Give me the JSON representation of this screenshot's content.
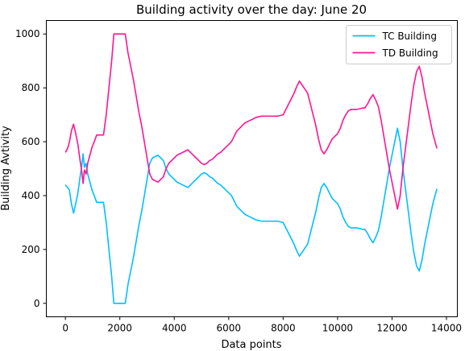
{
  "chart_data": {
    "type": "line",
    "title": "Building activity over the day: June 20",
    "xlabel": "Data points",
    "ylabel": "Building Avtivity",
    "xlim": [
      -700,
      14400
    ],
    "ylim": [
      -50,
      1050
    ],
    "xticks": [
      0,
      2000,
      4000,
      6000,
      8000,
      10000,
      12000,
      14000
    ],
    "yticks": [
      0,
      200,
      400,
      600,
      800,
      1000
    ],
    "grid": false,
    "legend_position": "top-right",
    "series": [
      {
        "name": "TC Building",
        "color": "#00bfff",
        "points": [
          [
            0,
            440
          ],
          [
            80,
            430
          ],
          [
            150,
            420
          ],
          [
            220,
            370
          ],
          [
            300,
            335
          ],
          [
            380,
            370
          ],
          [
            460,
            410
          ],
          [
            540,
            470
          ],
          [
            600,
            510
          ],
          [
            650,
            555
          ],
          [
            700,
            505
          ],
          [
            760,
            520
          ],
          [
            820,
            480
          ],
          [
            900,
            450
          ],
          [
            980,
            420
          ],
          [
            1060,
            400
          ],
          [
            1150,
            375
          ],
          [
            1300,
            375
          ],
          [
            1400,
            375
          ],
          [
            1500,
            300
          ],
          [
            1600,
            200
          ],
          [
            1700,
            100
          ],
          [
            1780,
            0
          ],
          [
            2200,
            0
          ],
          [
            2300,
            70
          ],
          [
            2400,
            120
          ],
          [
            2500,
            170
          ],
          [
            2600,
            230
          ],
          [
            2700,
            290
          ],
          [
            2800,
            340
          ],
          [
            2900,
            400
          ],
          [
            3000,
            460
          ],
          [
            3100,
            520
          ],
          [
            3200,
            540
          ],
          [
            3300,
            545
          ],
          [
            3400,
            550
          ],
          [
            3500,
            540
          ],
          [
            3600,
            530
          ],
          [
            3700,
            500
          ],
          [
            3800,
            480
          ],
          [
            3900,
            470
          ],
          [
            4000,
            460
          ],
          [
            4100,
            450
          ],
          [
            4200,
            445
          ],
          [
            4300,
            440
          ],
          [
            4400,
            435
          ],
          [
            4500,
            430
          ],
          [
            4600,
            440
          ],
          [
            4700,
            450
          ],
          [
            4800,
            460
          ],
          [
            4900,
            470
          ],
          [
            5000,
            480
          ],
          [
            5100,
            485
          ],
          [
            5200,
            480
          ],
          [
            5300,
            470
          ],
          [
            5400,
            465
          ],
          [
            5500,
            455
          ],
          [
            5600,
            445
          ],
          [
            5700,
            440
          ],
          [
            5800,
            430
          ],
          [
            5900,
            420
          ],
          [
            6000,
            410
          ],
          [
            6100,
            400
          ],
          [
            6200,
            380
          ],
          [
            6300,
            360
          ],
          [
            6400,
            350
          ],
          [
            6500,
            340
          ],
          [
            6600,
            330
          ],
          [
            6700,
            325
          ],
          [
            6800,
            320
          ],
          [
            6900,
            315
          ],
          [
            7000,
            310
          ],
          [
            7200,
            305
          ],
          [
            7400,
            305
          ],
          [
            7600,
            305
          ],
          [
            7800,
            305
          ],
          [
            8000,
            300
          ],
          [
            8100,
            280
          ],
          [
            8200,
            260
          ],
          [
            8300,
            240
          ],
          [
            8400,
            220
          ],
          [
            8500,
            195
          ],
          [
            8600,
            175
          ],
          [
            8700,
            190
          ],
          [
            8800,
            205
          ],
          [
            8900,
            220
          ],
          [
            9000,
            260
          ],
          [
            9100,
            300
          ],
          [
            9200,
            340
          ],
          [
            9300,
            390
          ],
          [
            9400,
            430
          ],
          [
            9500,
            445
          ],
          [
            9600,
            430
          ],
          [
            9700,
            410
          ],
          [
            9800,
            390
          ],
          [
            9900,
            380
          ],
          [
            10000,
            370
          ],
          [
            10100,
            350
          ],
          [
            10200,
            320
          ],
          [
            10300,
            300
          ],
          [
            10400,
            285
          ],
          [
            10500,
            280
          ],
          [
            10600,
            280
          ],
          [
            10700,
            280
          ],
          [
            10800,
            278
          ],
          [
            10900,
            275
          ],
          [
            11000,
            275
          ],
          [
            11100,
            260
          ],
          [
            11200,
            240
          ],
          [
            11300,
            225
          ],
          [
            11400,
            245
          ],
          [
            11500,
            270
          ],
          [
            11600,
            320
          ],
          [
            11700,
            380
          ],
          [
            11800,
            440
          ],
          [
            11900,
            500
          ],
          [
            12000,
            550
          ],
          [
            12100,
            600
          ],
          [
            12200,
            650
          ],
          [
            12300,
            600
          ],
          [
            12400,
            500
          ],
          [
            12500,
            420
          ],
          [
            12600,
            340
          ],
          [
            12700,
            260
          ],
          [
            12800,
            190
          ],
          [
            12900,
            140
          ],
          [
            13000,
            120
          ],
          [
            13100,
            160
          ],
          [
            13200,
            220
          ],
          [
            13300,
            270
          ],
          [
            13400,
            320
          ],
          [
            13500,
            370
          ],
          [
            13650,
            425
          ]
        ]
      },
      {
        "name": "TD Building",
        "color": "#ff1493",
        "points": [
          [
            0,
            560
          ],
          [
            80,
            575
          ],
          [
            150,
            600
          ],
          [
            220,
            640
          ],
          [
            300,
            665
          ],
          [
            380,
            630
          ],
          [
            460,
            590
          ],
          [
            540,
            530
          ],
          [
            600,
            490
          ],
          [
            650,
            445
          ],
          [
            700,
            495
          ],
          [
            760,
            480
          ],
          [
            820,
            520
          ],
          [
            900,
            550
          ],
          [
            980,
            580
          ],
          [
            1060,
            600
          ],
          [
            1150,
            625
          ],
          [
            1300,
            625
          ],
          [
            1400,
            625
          ],
          [
            1500,
            700
          ],
          [
            1600,
            800
          ],
          [
            1700,
            900
          ],
          [
            1780,
            1000
          ],
          [
            2200,
            1000
          ],
          [
            2300,
            930
          ],
          [
            2400,
            880
          ],
          [
            2500,
            830
          ],
          [
            2600,
            770
          ],
          [
            2700,
            710
          ],
          [
            2800,
            660
          ],
          [
            2900,
            600
          ],
          [
            3000,
            540
          ],
          [
            3100,
            480
          ],
          [
            3200,
            460
          ],
          [
            3300,
            455
          ],
          [
            3400,
            450
          ],
          [
            3500,
            460
          ],
          [
            3600,
            470
          ],
          [
            3700,
            500
          ],
          [
            3800,
            520
          ],
          [
            3900,
            530
          ],
          [
            4000,
            540
          ],
          [
            4100,
            550
          ],
          [
            4200,
            555
          ],
          [
            4300,
            560
          ],
          [
            4400,
            565
          ],
          [
            4500,
            570
          ],
          [
            4600,
            560
          ],
          [
            4700,
            550
          ],
          [
            4800,
            540
          ],
          [
            4900,
            530
          ],
          [
            5000,
            520
          ],
          [
            5100,
            515
          ],
          [
            5200,
            520
          ],
          [
            5300,
            530
          ],
          [
            5400,
            535
          ],
          [
            5500,
            545
          ],
          [
            5600,
            555
          ],
          [
            5700,
            560
          ],
          [
            5800,
            570
          ],
          [
            5900,
            580
          ],
          [
            6000,
            590
          ],
          [
            6100,
            600
          ],
          [
            6200,
            620
          ],
          [
            6300,
            640
          ],
          [
            6400,
            650
          ],
          [
            6500,
            660
          ],
          [
            6600,
            670
          ],
          [
            6700,
            675
          ],
          [
            6800,
            680
          ],
          [
            6900,
            685
          ],
          [
            7000,
            690
          ],
          [
            7200,
            695
          ],
          [
            7400,
            695
          ],
          [
            7600,
            695
          ],
          [
            7800,
            695
          ],
          [
            8000,
            700
          ],
          [
            8100,
            720
          ],
          [
            8200,
            740
          ],
          [
            8300,
            760
          ],
          [
            8400,
            780
          ],
          [
            8500,
            805
          ],
          [
            8600,
            825
          ],
          [
            8700,
            810
          ],
          [
            8800,
            795
          ],
          [
            8900,
            780
          ],
          [
            9000,
            740
          ],
          [
            9100,
            700
          ],
          [
            9200,
            660
          ],
          [
            9300,
            610
          ],
          [
            9400,
            570
          ],
          [
            9500,
            555
          ],
          [
            9600,
            570
          ],
          [
            9700,
            590
          ],
          [
            9800,
            610
          ],
          [
            9900,
            620
          ],
          [
            10000,
            630
          ],
          [
            10100,
            650
          ],
          [
            10200,
            680
          ],
          [
            10300,
            700
          ],
          [
            10400,
            715
          ],
          [
            10500,
            720
          ],
          [
            10600,
            720
          ],
          [
            10700,
            720
          ],
          [
            10800,
            722
          ],
          [
            10900,
            725
          ],
          [
            11000,
            725
          ],
          [
            11100,
            740
          ],
          [
            11200,
            760
          ],
          [
            11300,
            775
          ],
          [
            11400,
            755
          ],
          [
            11500,
            730
          ],
          [
            11600,
            680
          ],
          [
            11700,
            620
          ],
          [
            11800,
            560
          ],
          [
            11900,
            500
          ],
          [
            12000,
            450
          ],
          [
            12100,
            400
          ],
          [
            12200,
            350
          ],
          [
            12300,
            400
          ],
          [
            12400,
            500
          ],
          [
            12500,
            580
          ],
          [
            12600,
            660
          ],
          [
            12700,
            740
          ],
          [
            12800,
            810
          ],
          [
            12900,
            860
          ],
          [
            13000,
            880
          ],
          [
            13100,
            840
          ],
          [
            13200,
            780
          ],
          [
            13300,
            730
          ],
          [
            13400,
            680
          ],
          [
            13500,
            630
          ],
          [
            13650,
            575
          ]
        ]
      }
    ]
  }
}
